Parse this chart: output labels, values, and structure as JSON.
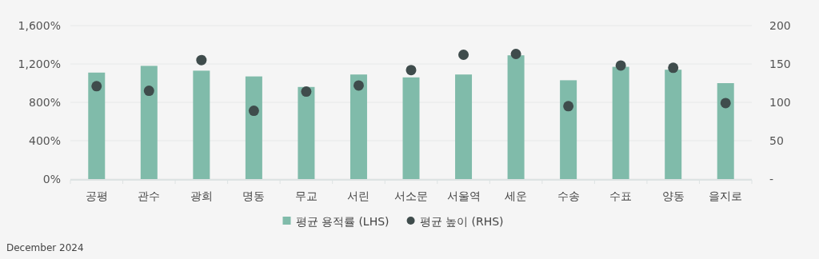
{
  "chart_data": {
    "type": "bar",
    "categories": [
      "공평",
      "관수",
      "광희",
      "명동",
      "무교",
      "서린",
      "서소문",
      "서울역",
      "세운",
      "수송",
      "수표",
      "양동",
      "을지로"
    ],
    "series": [
      {
        "name": "평균 용적률 (LHS)",
        "color": "#80bbaa",
        "values": [
          1110,
          1180,
          1130,
          1070,
          960,
          1090,
          1060,
          1090,
          1290,
          1030,
          1170,
          1140,
          1000
        ]
      },
      {
        "name": "평균 높이 (RHS)",
        "type": "scatter",
        "axis": "y2",
        "color": "#3f4c4c",
        "marker": "circle",
        "values": [
          121,
          115,
          155,
          89,
          114,
          122,
          142,
          162,
          163,
          95,
          148,
          145,
          99
        ]
      }
    ],
    "ylim": [
      0,
      1600
    ],
    "yticks": [
      {
        "value": 0,
        "label": "0%"
      },
      {
        "value": 400,
        "label": "400%"
      },
      {
        "value": 800,
        "label": "800%"
      },
      {
        "value": 1200,
        "label": "1,200%"
      },
      {
        "value": 1600,
        "label": "1,600%"
      }
    ],
    "y2lim": [
      0,
      200
    ],
    "y2ticks": [
      {
        "value": 0,
        "label": "-"
      },
      50,
      100,
      150,
      200
    ],
    "grid": "y",
    "legend": "bottom",
    "annotations": [
      "December 2024"
    ]
  }
}
